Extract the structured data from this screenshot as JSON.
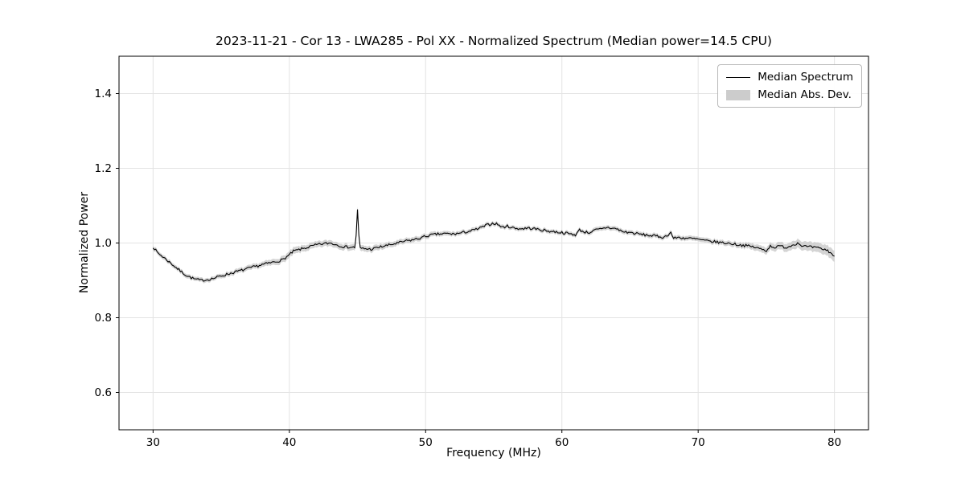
{
  "chart": {
    "title": "2023-11-21 - Cor 13 - LWA285 - Pol XX - Normalized Spectrum (Median power=14.5 CPU)",
    "xlabel": "Frequency (MHz)",
    "ylabel": "Normalized Power"
  },
  "legend": {
    "items": [
      {
        "label": "Median Spectrum",
        "type": "line",
        "color": "#000000"
      },
      {
        "label": "Median Abs. Dev.",
        "type": "band",
        "color": "#cccccc"
      }
    ]
  },
  "chart_data": {
    "type": "line",
    "title": "2023-11-21 - Cor 13 - LWA285 - Pol XX - Normalized Spectrum (Median power=14.5 CPU)",
    "xlabel": "Frequency (MHz)",
    "ylabel": "Normalized Power",
    "xlim": [
      27.5,
      82.5
    ],
    "ylim": [
      0.5,
      1.5
    ],
    "xticks": [
      30,
      40,
      50,
      60,
      70,
      80
    ],
    "yticks": [
      0.6,
      0.8,
      1.0,
      1.2,
      1.4
    ],
    "grid": true,
    "grid_color": "#e3e3e3",
    "line_color": "#000000",
    "band_color": "#cccccc",
    "legend_position": "upper right",
    "x_range": [
      30,
      80
    ],
    "sample_step_mhz": 0.1,
    "noise_amplitude": 0.0035,
    "seed": 7,
    "spike": {
      "x": 45.0,
      "y": 1.09
    },
    "series": [
      {
        "name": "Median Spectrum",
        "anchors": [
          [
            30,
            0.99
          ],
          [
            30.3,
            0.975
          ],
          [
            31,
            0.955
          ],
          [
            31.5,
            0.94
          ],
          [
            32,
            0.925
          ],
          [
            32.5,
            0.912
          ],
          [
            33,
            0.904
          ],
          [
            33.5,
            0.9
          ],
          [
            34,
            0.902
          ],
          [
            34.5,
            0.906
          ],
          [
            35,
            0.912
          ],
          [
            36,
            0.922
          ],
          [
            37,
            0.932
          ],
          [
            38,
            0.942
          ],
          [
            39,
            0.95
          ],
          [
            39.5,
            0.955
          ],
          [
            40,
            0.968
          ],
          [
            40.3,
            0.978
          ],
          [
            41,
            0.985
          ],
          [
            41.5,
            0.99
          ],
          [
            42,
            0.995
          ],
          [
            42.5,
            0.998
          ],
          [
            43,
            1.0
          ],
          [
            43.5,
            0.995
          ],
          [
            44,
            0.99
          ],
          [
            44.85,
            0.988
          ],
          [
            45,
            1.088
          ],
          [
            45.15,
            0.986
          ],
          [
            45.5,
            0.985
          ],
          [
            46,
            0.983
          ],
          [
            46.5,
            0.988
          ],
          [
            47,
            0.992
          ],
          [
            47.5,
            0.996
          ],
          [
            48,
            1.0
          ],
          [
            48.5,
            1.005
          ],
          [
            49,
            1.008
          ],
          [
            49.5,
            1.012
          ],
          [
            50,
            1.018
          ],
          [
            50.5,
            1.022
          ],
          [
            51,
            1.024
          ],
          [
            51.5,
            1.025
          ],
          [
            52,
            1.024
          ],
          [
            52.5,
            1.026
          ],
          [
            53,
            1.03
          ],
          [
            53.5,
            1.034
          ],
          [
            54,
            1.04
          ],
          [
            54.5,
            1.048
          ],
          [
            55,
            1.053
          ],
          [
            55.3,
            1.05
          ],
          [
            55.6,
            1.042
          ],
          [
            56,
            1.045
          ],
          [
            56.5,
            1.04
          ],
          [
            57,
            1.038
          ],
          [
            57.5,
            1.04
          ],
          [
            58,
            1.038
          ],
          [
            58.5,
            1.035
          ],
          [
            59,
            1.032
          ],
          [
            59.5,
            1.03
          ],
          [
            60,
            1.028
          ],
          [
            60.5,
            1.025
          ],
          [
            61,
            1.022
          ],
          [
            61.3,
            1.035
          ],
          [
            61.6,
            1.03
          ],
          [
            62,
            1.028
          ],
          [
            62.5,
            1.035
          ],
          [
            63,
            1.038
          ],
          [
            63.3,
            1.042
          ],
          [
            63.6,
            1.04
          ],
          [
            64,
            1.038
          ],
          [
            64.5,
            1.03
          ],
          [
            65,
            1.028
          ],
          [
            65.5,
            1.025
          ],
          [
            66,
            1.022
          ],
          [
            66.5,
            1.02
          ],
          [
            67,
            1.018
          ],
          [
            67.5,
            1.015
          ],
          [
            68,
            1.028
          ],
          [
            68.2,
            1.012
          ],
          [
            68.5,
            1.015
          ],
          [
            69,
            1.013
          ],
          [
            69.5,
            1.012
          ],
          [
            70,
            1.01
          ],
          [
            70.5,
            1.006
          ],
          [
            71,
            1.004
          ],
          [
            71.5,
            1.002
          ],
          [
            72,
            1.0
          ],
          [
            72.5,
            0.998
          ],
          [
            73,
            0.995
          ],
          [
            73.5,
            0.993
          ],
          [
            74,
            0.99
          ],
          [
            74.5,
            0.985
          ],
          [
            75,
            0.98
          ],
          [
            75.3,
            0.992
          ],
          [
            75.7,
            0.988
          ],
          [
            76,
            0.992
          ],
          [
            76.5,
            0.988
          ],
          [
            77,
            0.996
          ],
          [
            77.3,
            1.0
          ],
          [
            77.7,
            0.992
          ],
          [
            78,
            0.99
          ],
          [
            78.5,
            0.988
          ],
          [
            79,
            0.985
          ],
          [
            79.5,
            0.98
          ],
          [
            80,
            0.965
          ]
        ]
      },
      {
        "name": "Median Abs. Dev.",
        "band_halfwidth_anchors": [
          [
            30,
            0.006
          ],
          [
            34,
            0.0055
          ],
          [
            38,
            0.007
          ],
          [
            40,
            0.009
          ],
          [
            42,
            0.008
          ],
          [
            45,
            0.008
          ],
          [
            48,
            0.007
          ],
          [
            52,
            0.006
          ],
          [
            56,
            0.0055
          ],
          [
            60,
            0.0055
          ],
          [
            64,
            0.006
          ],
          [
            68,
            0.006
          ],
          [
            72,
            0.0065
          ],
          [
            75,
            0.009
          ],
          [
            77,
            0.011
          ],
          [
            79,
            0.013
          ],
          [
            80,
            0.015
          ]
        ]
      }
    ]
  }
}
